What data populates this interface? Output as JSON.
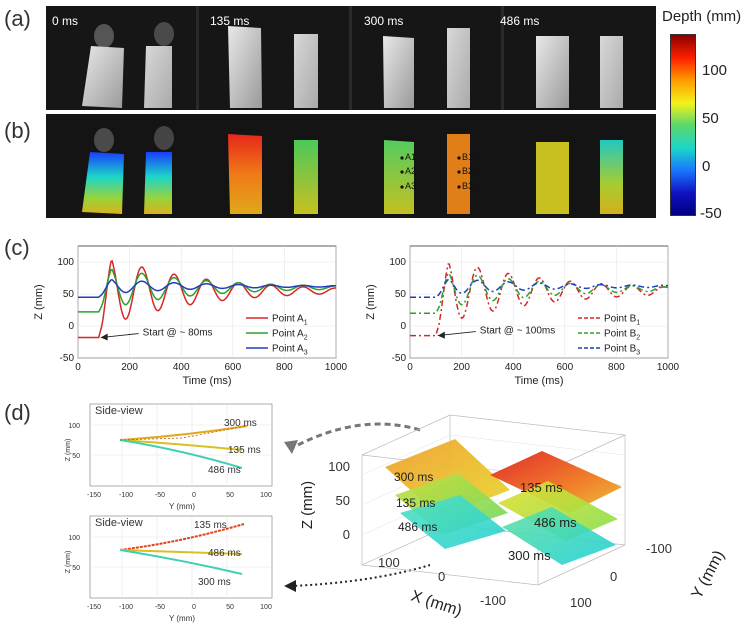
{
  "panels": {
    "a": "(a)",
    "b": "(b)",
    "c": "(c)",
    "d": "(d)"
  },
  "strip_a": {
    "times": [
      "0 ms",
      "135 ms",
      "300 ms",
      "486 ms"
    ]
  },
  "strip_b": {
    "points_a": [
      "A1",
      "A2",
      "A3"
    ],
    "points_b": [
      "B1",
      "B2",
      "B3"
    ]
  },
  "colorbar": {
    "title": "Depth (mm)",
    "ticks": [
      "100",
      "50",
      "0",
      "-50"
    ],
    "colors": [
      "#8b0000",
      "#ff2000",
      "#ff9a00",
      "#f2f21a",
      "#5bd86a",
      "#1bd6c8",
      "#1a78ff",
      "#1010c0",
      "#000080"
    ]
  },
  "chart_data": [
    {
      "type": "line",
      "xlabel": "Time (ms)",
      "ylabel": "Z (mm)",
      "xlim": [
        0,
        1000
      ],
      "ylim": [
        -50,
        125
      ],
      "xticks": [
        "0",
        "200",
        "400",
        "600",
        "800",
        "1000"
      ],
      "yticks": [
        "-50",
        "0",
        "50",
        "100"
      ],
      "annotation": "Start @ ~ 80ms",
      "start_ms": 80,
      "series": [
        {
          "name": "Point A",
          "sub": "1",
          "color": "#d62728",
          "dash": "",
          "initial": -18,
          "final": 55,
          "amp": 60,
          "period": 125,
          "decay": 350
        },
        {
          "name": "Point A",
          "sub": "2",
          "color": "#2ca02c",
          "dash": "",
          "initial": 22,
          "final": 60,
          "amp": 36,
          "period": 125,
          "decay": 350
        },
        {
          "name": "Point A",
          "sub": "3",
          "color": "#1f3fbf",
          "dash": "",
          "initial": 45,
          "final": 62,
          "amp": 13,
          "period": 125,
          "decay": 350
        }
      ]
    },
    {
      "type": "line",
      "xlabel": "Time (ms)",
      "ylabel": "Z (mm)",
      "xlim": [
        0,
        1000
      ],
      "ylim": [
        -50,
        125
      ],
      "xticks": [
        "0",
        "200",
        "400",
        "600",
        "800",
        "1000"
      ],
      "yticks": [
        "-50",
        "0",
        "50",
        "100"
      ],
      "annotation": "Start @ ~ 100ms",
      "start_ms": 100,
      "series": [
        {
          "name": "Point B",
          "sub": "1",
          "color": "#d62728",
          "dash": "6,3,2,3",
          "initial": -15,
          "final": 55,
          "amp": 55,
          "period": 120,
          "decay": 400
        },
        {
          "name": "Point B",
          "sub": "2",
          "color": "#2ca02c",
          "dash": "6,3,2,3",
          "initial": 20,
          "final": 58,
          "amp": 32,
          "period": 120,
          "decay": 400
        },
        {
          "name": "Point B",
          "sub": "3",
          "color": "#1f3fbf",
          "dash": "6,3,2,3",
          "initial": 45,
          "final": 62,
          "amp": 14,
          "period": 120,
          "decay": 400
        }
      ]
    }
  ],
  "side_views": [
    {
      "title": "Side-view",
      "xlabel": "Y (mm)",
      "ylabel": "Z (mm)",
      "xticks": [
        "-150",
        "-100",
        "-50",
        "0",
        "50",
        "100"
      ],
      "yticks": [
        "100",
        "50"
      ],
      "labels": [
        "300 ms",
        "135 ms",
        "486 ms"
      ]
    },
    {
      "title": "Side-view",
      "xlabel": "Y (mm)",
      "ylabel": "Z (mm)",
      "xticks": [
        "-150",
        "-100",
        "-50",
        "0",
        "50",
        "100"
      ],
      "yticks": [
        "100",
        "50"
      ],
      "labels": [
        "135 ms",
        "486 ms",
        "300 ms"
      ]
    }
  ],
  "plot3d": {
    "zlabel": "Z (mm)",
    "xlabel": "X (mm)",
    "ylabel": "Y (mm)",
    "zticks": [
      "100",
      "50",
      "0"
    ],
    "xticks": [
      "100",
      "0",
      "-100"
    ],
    "yticks": [
      "-100",
      "0",
      "100"
    ],
    "left_labels": [
      "300 ms",
      "135 ms",
      "486 ms"
    ],
    "right_labels": [
      "135 ms",
      "486 ms",
      "300 ms"
    ]
  }
}
